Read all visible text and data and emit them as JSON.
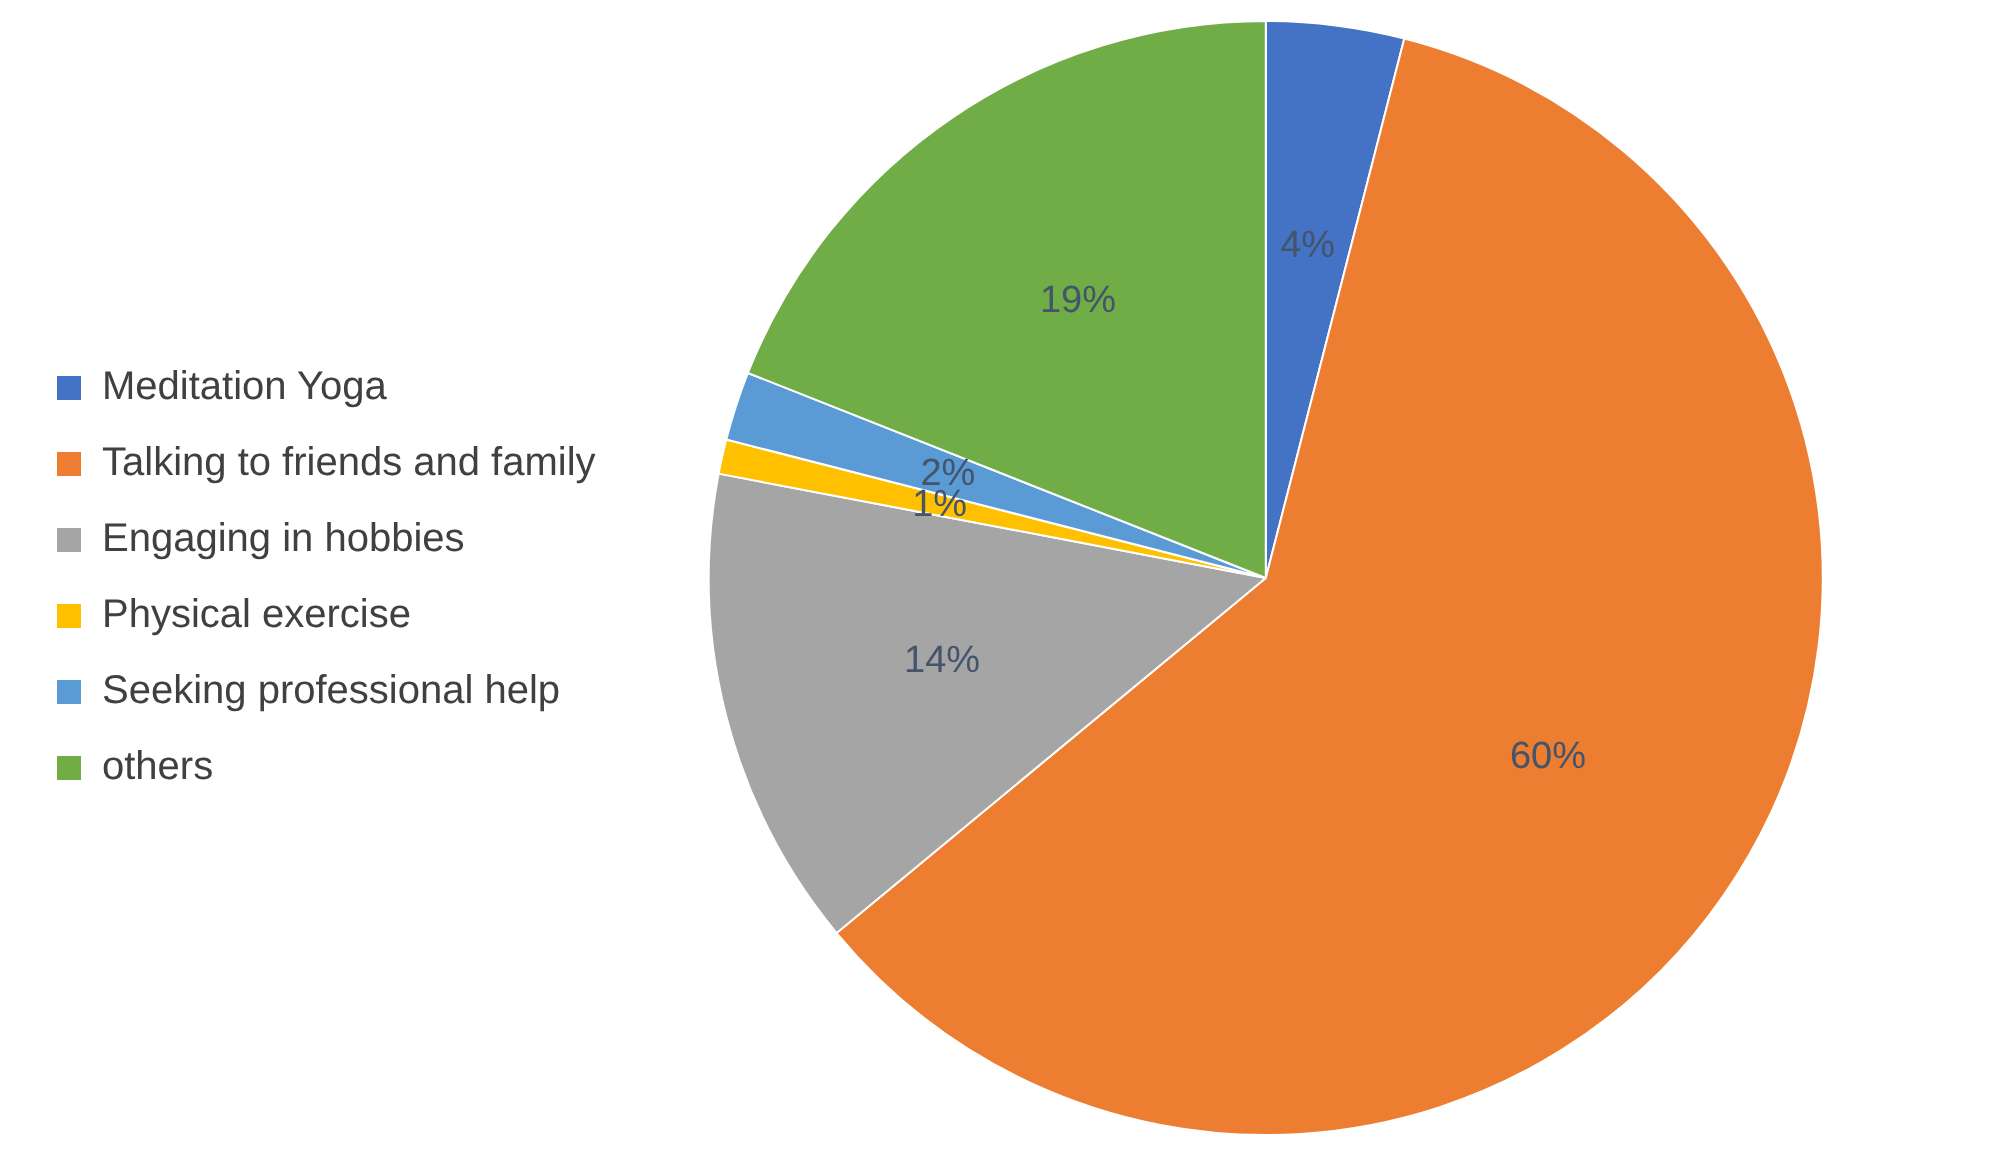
{
  "chart_data": {
    "type": "pie",
    "categories": [
      "Meditation Yoga",
      "Talking to friends and family",
      "Engaging in hobbies",
      "Physical exercise",
      "Seeking professional help",
      "others"
    ],
    "values": [
      4,
      60,
      14,
      1,
      2,
      19
    ],
    "colors": [
      "#4472c4",
      "#ed7d31",
      "#a5a5a5",
      "#ffc000",
      "#5b9bd5",
      "#70ad47"
    ],
    "value_labels": [
      "4%",
      "60%",
      "14%",
      "1%",
      "2%",
      "19%"
    ],
    "legend": "left"
  }
}
